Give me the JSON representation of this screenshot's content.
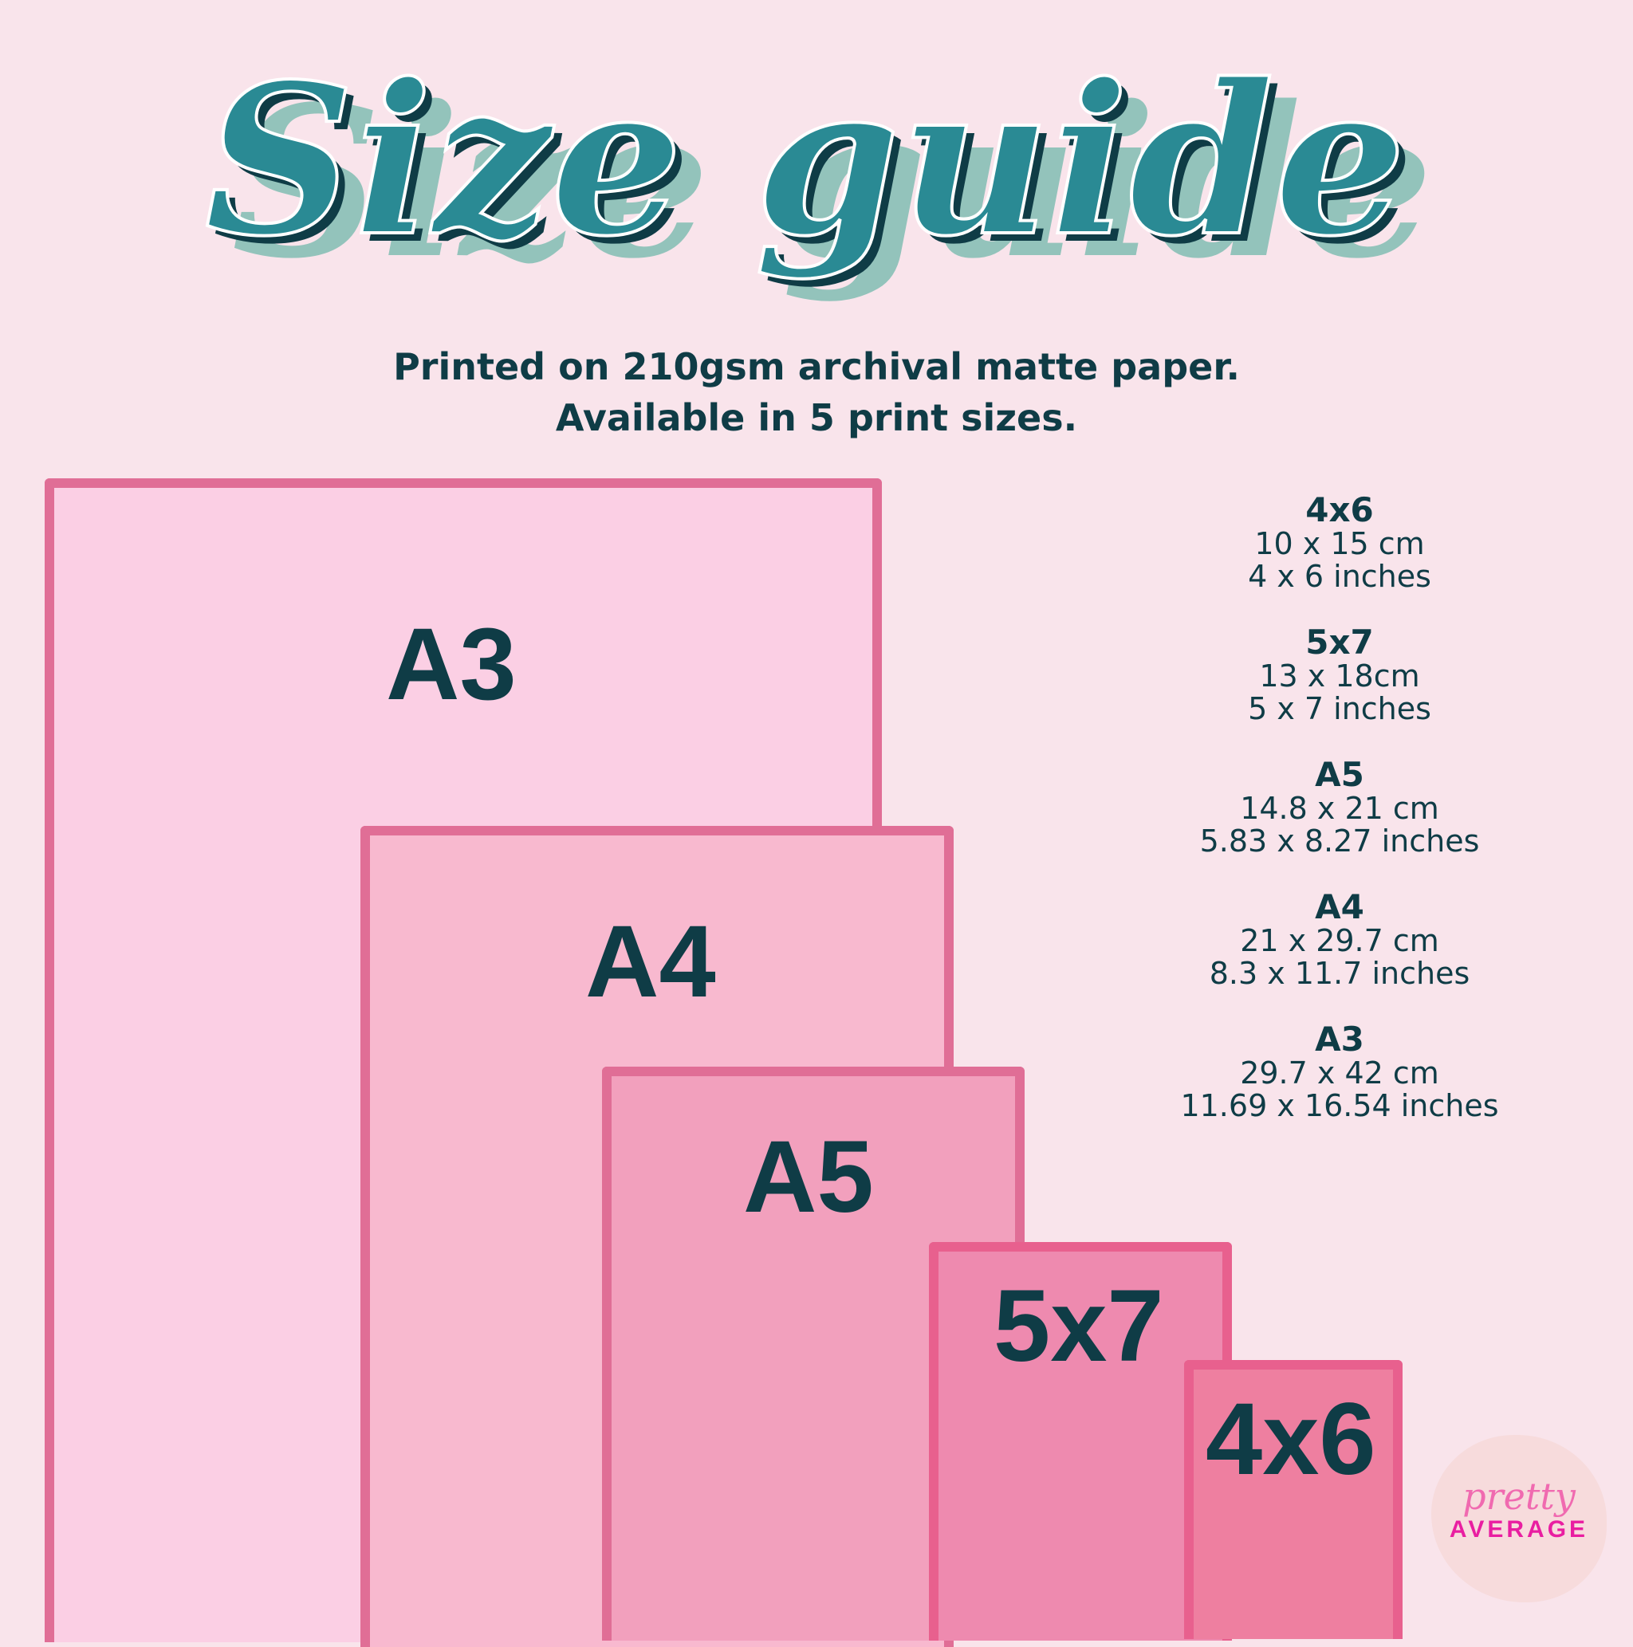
{
  "title": "Size guide",
  "subtitle": {
    "line1": "Printed on 210gsm archival matte paper.",
    "line2": "Available in 5 print sizes."
  },
  "sheets": [
    {
      "label": "A3",
      "fill": "#fbcfe4"
    },
    {
      "label": "A4",
      "fill": "#f8b9cf"
    },
    {
      "label": "A5",
      "fill": "#f2a0bd"
    },
    {
      "label": "5x7",
      "fill": "#ee8aaf"
    },
    {
      "label": "4x6",
      "fill": "#ee7fa0"
    }
  ],
  "specs": [
    {
      "name": "4x6",
      "metric": "10 x 15 cm",
      "imperial": "4 x 6 inches"
    },
    {
      "name": "5x7",
      "metric": "13 x 18cm",
      "imperial": "5 x 7 inches"
    },
    {
      "name": "A5",
      "metric": "14.8 x 21 cm",
      "imperial": "5.83 x 8.27 inches"
    },
    {
      "name": "A4",
      "metric": "21 x 29.7 cm",
      "imperial": "8.3 x 11.7 inches"
    },
    {
      "name": "A3",
      "metric": "29.7 x 42 cm",
      "imperial": "11.69 x 16.54 inches"
    }
  ],
  "logo": {
    "script": "pretty",
    "word": "AVERAGE"
  },
  "colors": {
    "text": "#0f3c46",
    "title_fill": "#2a8a94",
    "title_shadow": "#93c3bb",
    "background": "#f9e4eb",
    "border": "#e06e96"
  }
}
